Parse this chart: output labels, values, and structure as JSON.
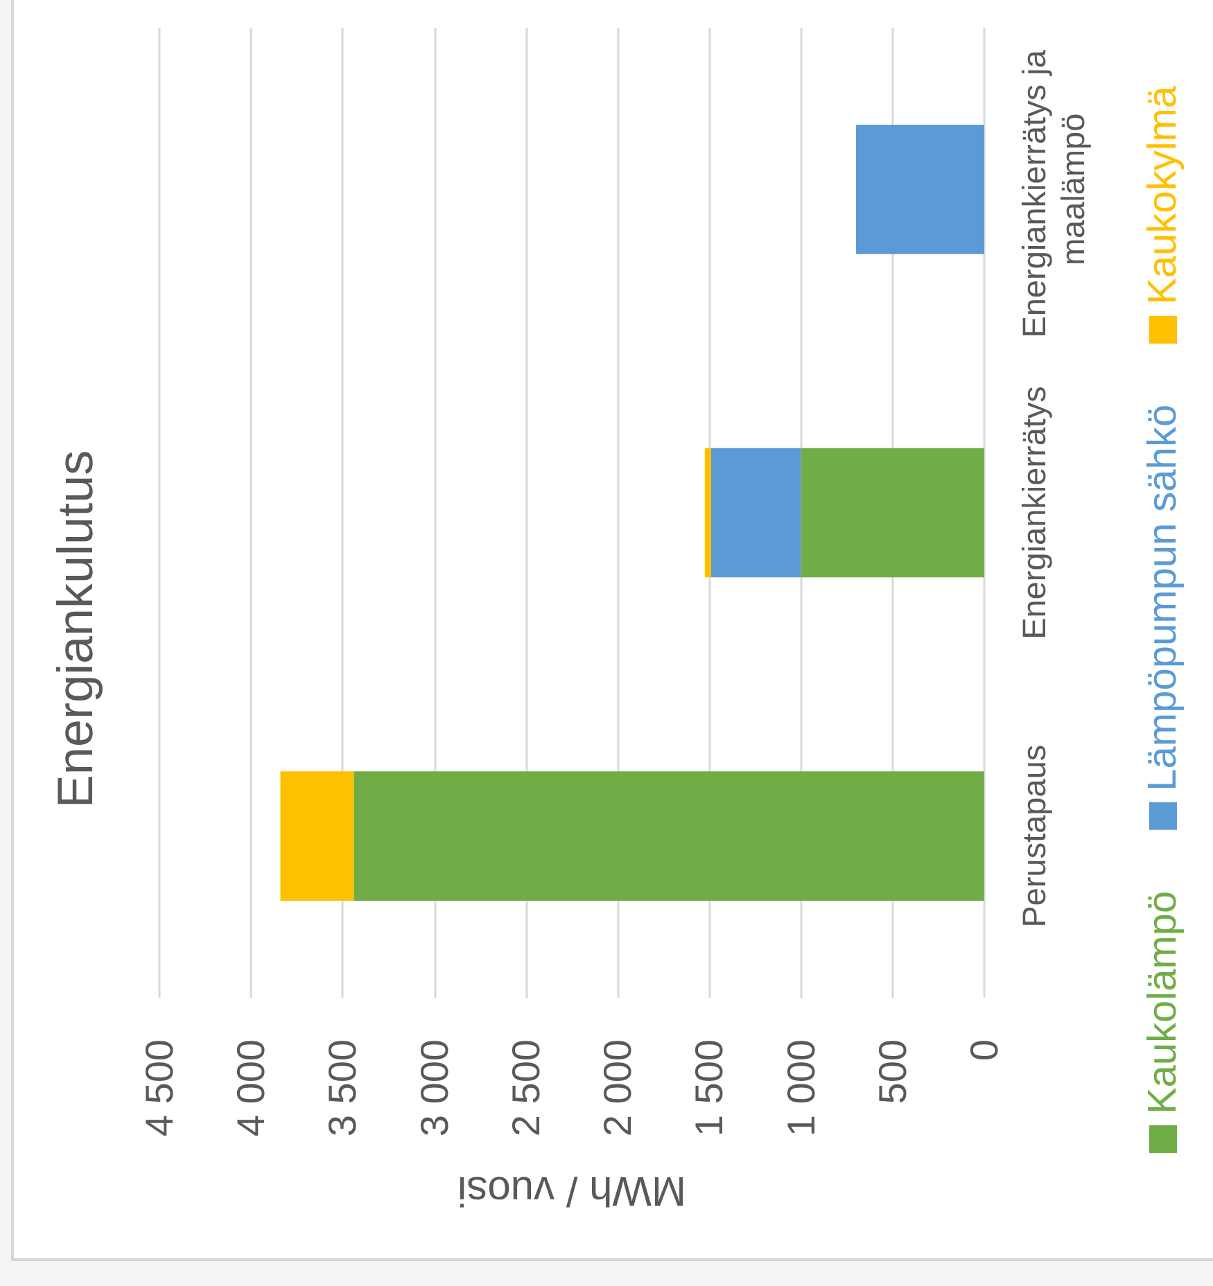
{
  "chart_data": {
    "type": "bar",
    "title": "Energiankulutus",
    "xlabel": "MWh / vuosi",
    "orientation": "horizontal",
    "stacked": true,
    "categories": [
      "Energiankierrätys ja maalämpö",
      "Energiankierrätys",
      "Perustapaus"
    ],
    "series": [
      {
        "name": "Kaukolämpö",
        "color": "#70ad47",
        "values": [
          null,
          1000,
          3440
        ]
      },
      {
        "name": "Lämpöpumpun sähkö",
        "color": "#5b9bd5",
        "values": [
          700,
          490,
          null
        ]
      },
      {
        "name": "Kaukokylmä",
        "color": "#ffc000",
        "values": [
          null,
          35,
          400
        ]
      }
    ],
    "xlim": [
      4500,
      0
    ],
    "xticks": [
      {
        "value": 4500,
        "label": "4 500"
      },
      {
        "value": 4000,
        "label": "4 000"
      },
      {
        "value": 3500,
        "label": "3 500"
      },
      {
        "value": 3000,
        "label": "3 000"
      },
      {
        "value": 2500,
        "label": "2 500"
      },
      {
        "value": 2000,
        "label": "2 000"
      },
      {
        "value": 1500,
        "label": "1 500"
      },
      {
        "value": 1000,
        "label": "1 000"
      },
      500,
      0
    ],
    "grid": "x",
    "legend": "right"
  }
}
